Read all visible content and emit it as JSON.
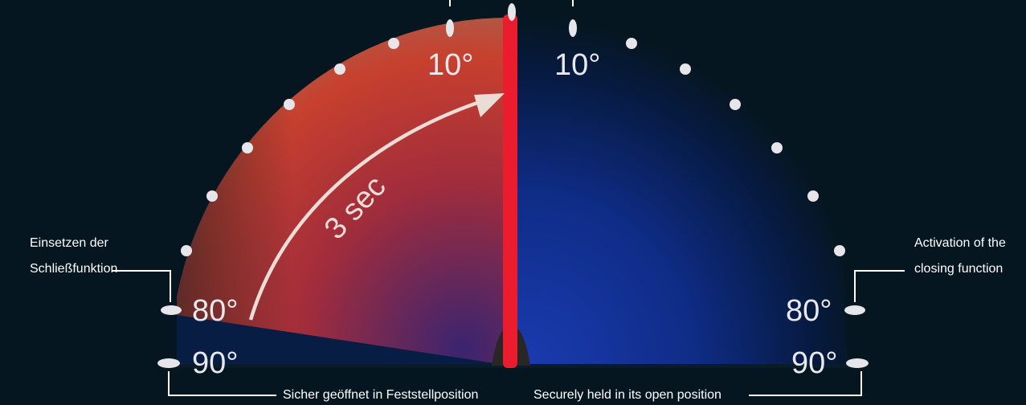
{
  "angles": {
    "left_top": "10°",
    "right_top": "10°",
    "left_80": "80°",
    "left_90": "90°",
    "right_80": "80°",
    "right_90": "90°"
  },
  "timer_label": "3 sec",
  "labels": {
    "de_activation_line1": "Einsetzen der",
    "de_activation_line2": "Schließfunktion",
    "en_activation_line1": "Activation of the",
    "en_activation_line2": "closing function",
    "de_hold": "Sicher geöffnet in Feststellposition",
    "en_hold": "Securely held in its open position"
  },
  "colors": {
    "background": "#061621",
    "closing_sector": "#c0392b",
    "open_sector": "#1238a0",
    "door_leaf": "#ea1c2d",
    "markers": "#e6e6ea"
  }
}
